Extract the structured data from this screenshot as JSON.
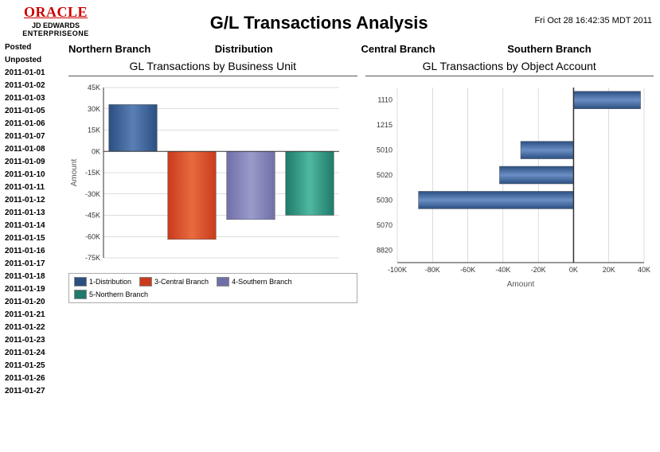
{
  "header": {
    "brand_top": "ORACLE",
    "brand_mid": "JD EDWARDS",
    "brand_bot": "ENTERPRISEONE",
    "title": "G/L Transactions Analysis",
    "timestamp": "Fri Oct 28 16:42:35 MDT 2011"
  },
  "sidebar": {
    "items": [
      "Posted",
      "Unposted",
      "2011-01-01",
      "2011-01-02",
      "2011-01-03",
      "2011-01-05",
      "2011-01-06",
      "2011-01-07",
      "2011-01-08",
      "2011-01-09",
      "2011-01-10",
      "2011-01-11",
      "2011-01-12",
      "2011-01-13",
      "2011-01-14",
      "2011-01-15",
      "2011-01-16",
      "2011-01-17",
      "2011-01-18",
      "2011-01-19",
      "2011-01-20",
      "2011-01-21",
      "2011-01-22",
      "2011-01-23",
      "2011-01-24",
      "2011-01-25",
      "2011-01-26",
      "2011-01-27"
    ]
  },
  "branch_headers": [
    "Northern Branch",
    "Distribution",
    "Central Branch",
    "Southern Branch"
  ],
  "chart1": {
    "type": "bar",
    "title": "GL Transactions by Business Unit",
    "ylabel": "Amount",
    "ylim": [
      -75000,
      45000
    ],
    "yticks": [
      -75000,
      -60000,
      -45000,
      -30000,
      -15000,
      0,
      15000,
      30000,
      45000
    ],
    "ytick_labels": [
      "-75K",
      "-60K",
      "-45K",
      "-30K",
      "-15K",
      "0K",
      "15K",
      "30K",
      "45K"
    ],
    "bars": [
      {
        "label": "1-Distribution",
        "value": 33000,
        "color1": "#2b4f81",
        "color2": "#5a7fb5"
      },
      {
        "label": "3-Central Branch",
        "value": -62000,
        "color1": "#c93b1c",
        "color2": "#e86a3f"
      },
      {
        "label": "4-Southern Branch",
        "value": -48000,
        "color1": "#6f6fa8",
        "color2": "#9a9acb"
      },
      {
        "label": "5-Northern Branch",
        "value": -45000,
        "color1": "#1f7a6a",
        "color2": "#4fb8a0"
      }
    ],
    "legend_labels": [
      "1-Distribution",
      "3-Central Branch",
      "4-Southern Branch",
      "5-Northern Branch"
    ],
    "legend_colors": [
      "#2b4f81",
      "#c93b1c",
      "#6f6fa8",
      "#1f7a6a"
    ],
    "plot_bg": "#ffffff",
    "grid_color": "#bbbbbb"
  },
  "chart2": {
    "type": "hbar",
    "title": "GL Transactions by Object Account",
    "xlabel": "Amount",
    "xlim": [
      -100000,
      40000
    ],
    "xticks": [
      -100000,
      -80000,
      -60000,
      -40000,
      -20000,
      0,
      20000,
      40000
    ],
    "xtick_labels": [
      "-100K",
      "-80K",
      "-60K",
      "-40K",
      "-20K",
      "0K",
      "20K",
      "40K"
    ],
    "categories": [
      "1110",
      "1215",
      "5010",
      "5020",
      "5030",
      "5070",
      "8820"
    ],
    "values": [
      38000,
      0,
      -30000,
      -42000,
      -88000,
      0,
      0
    ],
    "bar_color1": "#2b4f81",
    "bar_color2": "#6a8fc4",
    "plot_bg": "#ffffff",
    "grid_color": "#bbbbbb"
  }
}
